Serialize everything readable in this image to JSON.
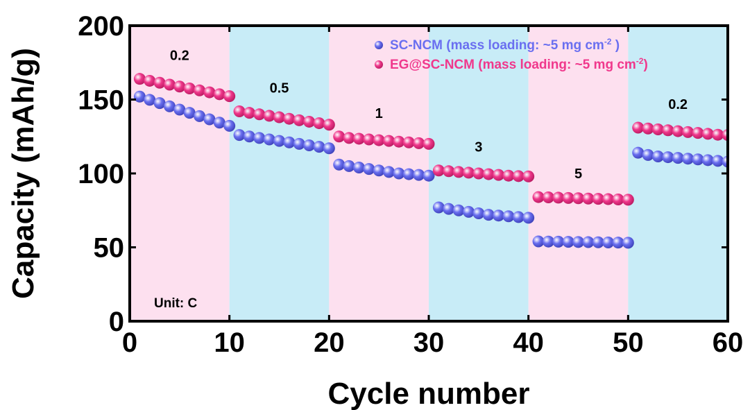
{
  "chart_data": {
    "type": "scatter",
    "xlabel": "Cycle number",
    "ylabel": "Capacity (mAh/g)",
    "xlim": [
      0,
      60
    ],
    "ylim": [
      0,
      200
    ],
    "xticks": [
      "0",
      "10",
      "20",
      "30",
      "40",
      "50",
      "60"
    ],
    "yticks": [
      "0",
      "50",
      "100",
      "150",
      "200"
    ],
    "grid": false,
    "legend_position": "top-right",
    "unit_note": "Unit: C",
    "rate_regions": [
      {
        "from": 0,
        "to": 10,
        "rate": "0.2",
        "color": "#fde0ef"
      },
      {
        "from": 10,
        "to": 20,
        "rate": "0.5",
        "color": "#c8ecf7"
      },
      {
        "from": 20,
        "to": 30,
        "rate": "1",
        "color": "#fde0ef"
      },
      {
        "from": 30,
        "to": 40,
        "rate": "3",
        "color": "#c8ecf7"
      },
      {
        "from": 40,
        "to": 50,
        "rate": "5",
        "color": "#fde0ef"
      },
      {
        "from": 50,
        "to": 60,
        "rate": "0.2",
        "color": "#c8ecf7"
      }
    ],
    "x": [
      1,
      2,
      3,
      4,
      5,
      6,
      7,
      8,
      9,
      10,
      11,
      12,
      13,
      14,
      15,
      16,
      17,
      18,
      19,
      20,
      21,
      22,
      23,
      24,
      25,
      26,
      27,
      28,
      29,
      30,
      31,
      32,
      33,
      34,
      35,
      36,
      37,
      38,
      39,
      40,
      41,
      42,
      43,
      44,
      45,
      46,
      47,
      48,
      49,
      50,
      51,
      52,
      53,
      54,
      55,
      56,
      57,
      58,
      59,
      60
    ],
    "series": [
      {
        "name": "SC-NCM (mass loading: ~5 mg cm",
        "name_sup": "-2",
        "name_tail": " )",
        "color": "#6a6ff0",
        "values": [
          152,
          149.8,
          147.6,
          145.4,
          143.2,
          141,
          138.8,
          136.6,
          134.4,
          132.2,
          126,
          125,
          124,
          123,
          122,
          121,
          120,
          119,
          118,
          117,
          106,
          105,
          104,
          103,
          102,
          101,
          100,
          99.5,
          99,
          98.5,
          77,
          76,
          75,
          74,
          73,
          72,
          71.5,
          71,
          70.5,
          70,
          54,
          53.9,
          53.8,
          53.7,
          53.6,
          53.5,
          53.4,
          53.3,
          53.2,
          53.1,
          114,
          112.5,
          111.5,
          111,
          110.5,
          110,
          109.5,
          109,
          108.5,
          108
        ]
      },
      {
        "name": "EG@SC-NCM (mass loading: ~5 mg cm",
        "name_sup": "-2",
        "name_tail": ")",
        "color": "#f0388c",
        "values": [
          164,
          162.7,
          161.4,
          160.1,
          158.8,
          157.5,
          156.2,
          154.9,
          153.6,
          152.3,
          142,
          141,
          140,
          139,
          138,
          137,
          136,
          135,
          134,
          133,
          125,
          124,
          123.5,
          123,
          122.5,
          122,
          121.5,
          121,
          120.5,
          120,
          102,
          101.5,
          101,
          100.5,
          100,
          99.5,
          99,
          98.5,
          98.2,
          98,
          84,
          83.8,
          83.6,
          83.4,
          83.2,
          83,
          82.8,
          82.6,
          82.4,
          82.2,
          131,
          130.4,
          129.8,
          129.2,
          128.6,
          128,
          127.4,
          126.8,
          126.2,
          126
        ]
      }
    ]
  }
}
